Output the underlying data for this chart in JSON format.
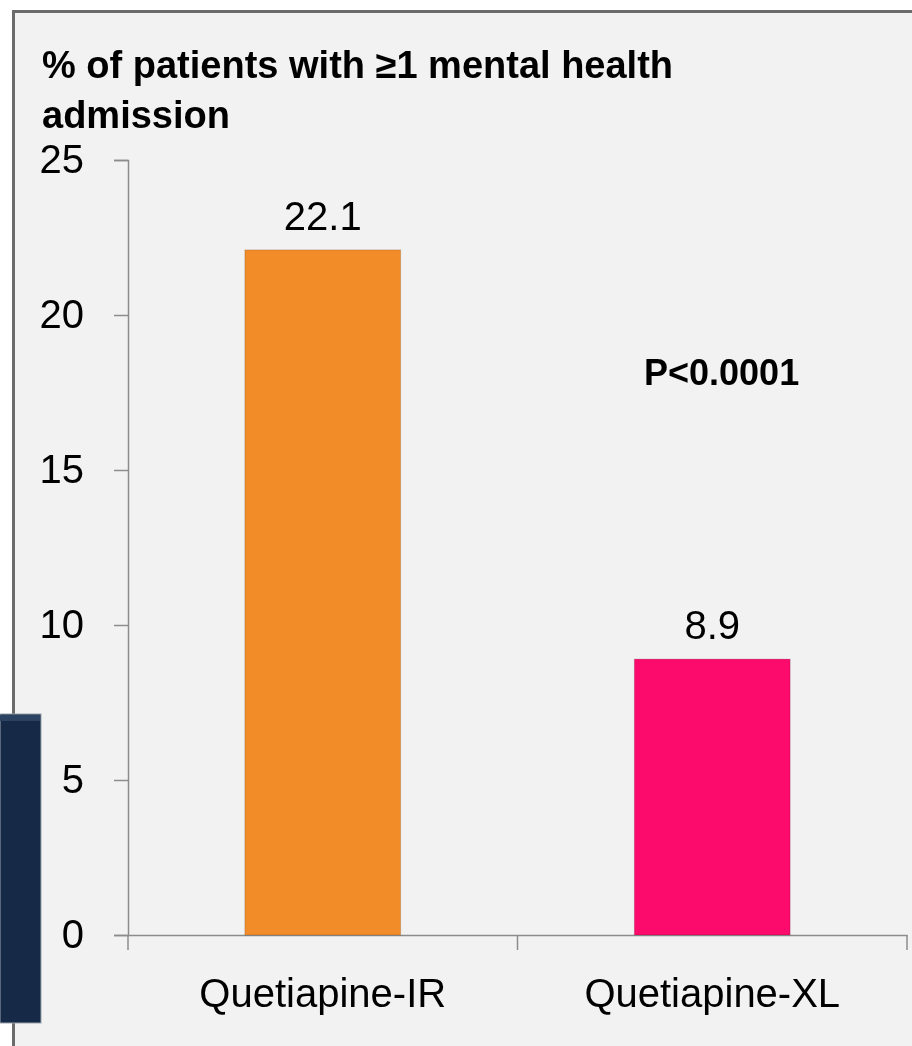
{
  "chart_data": {
    "type": "bar",
    "ylabel": "% of patients with ≥1 mental health admission",
    "categories": [
      "Quetiapine-IR",
      "Quetiapine-XL"
    ],
    "values": [
      22.1,
      8.9
    ],
    "colors": [
      "#f28c28",
      "#fc0a6c"
    ],
    "ylim": [
      0,
      25
    ],
    "yticks": [
      0,
      5,
      10,
      15,
      20,
      25
    ],
    "data_labels": true,
    "annotations": [
      "P<0.0001"
    ]
  }
}
